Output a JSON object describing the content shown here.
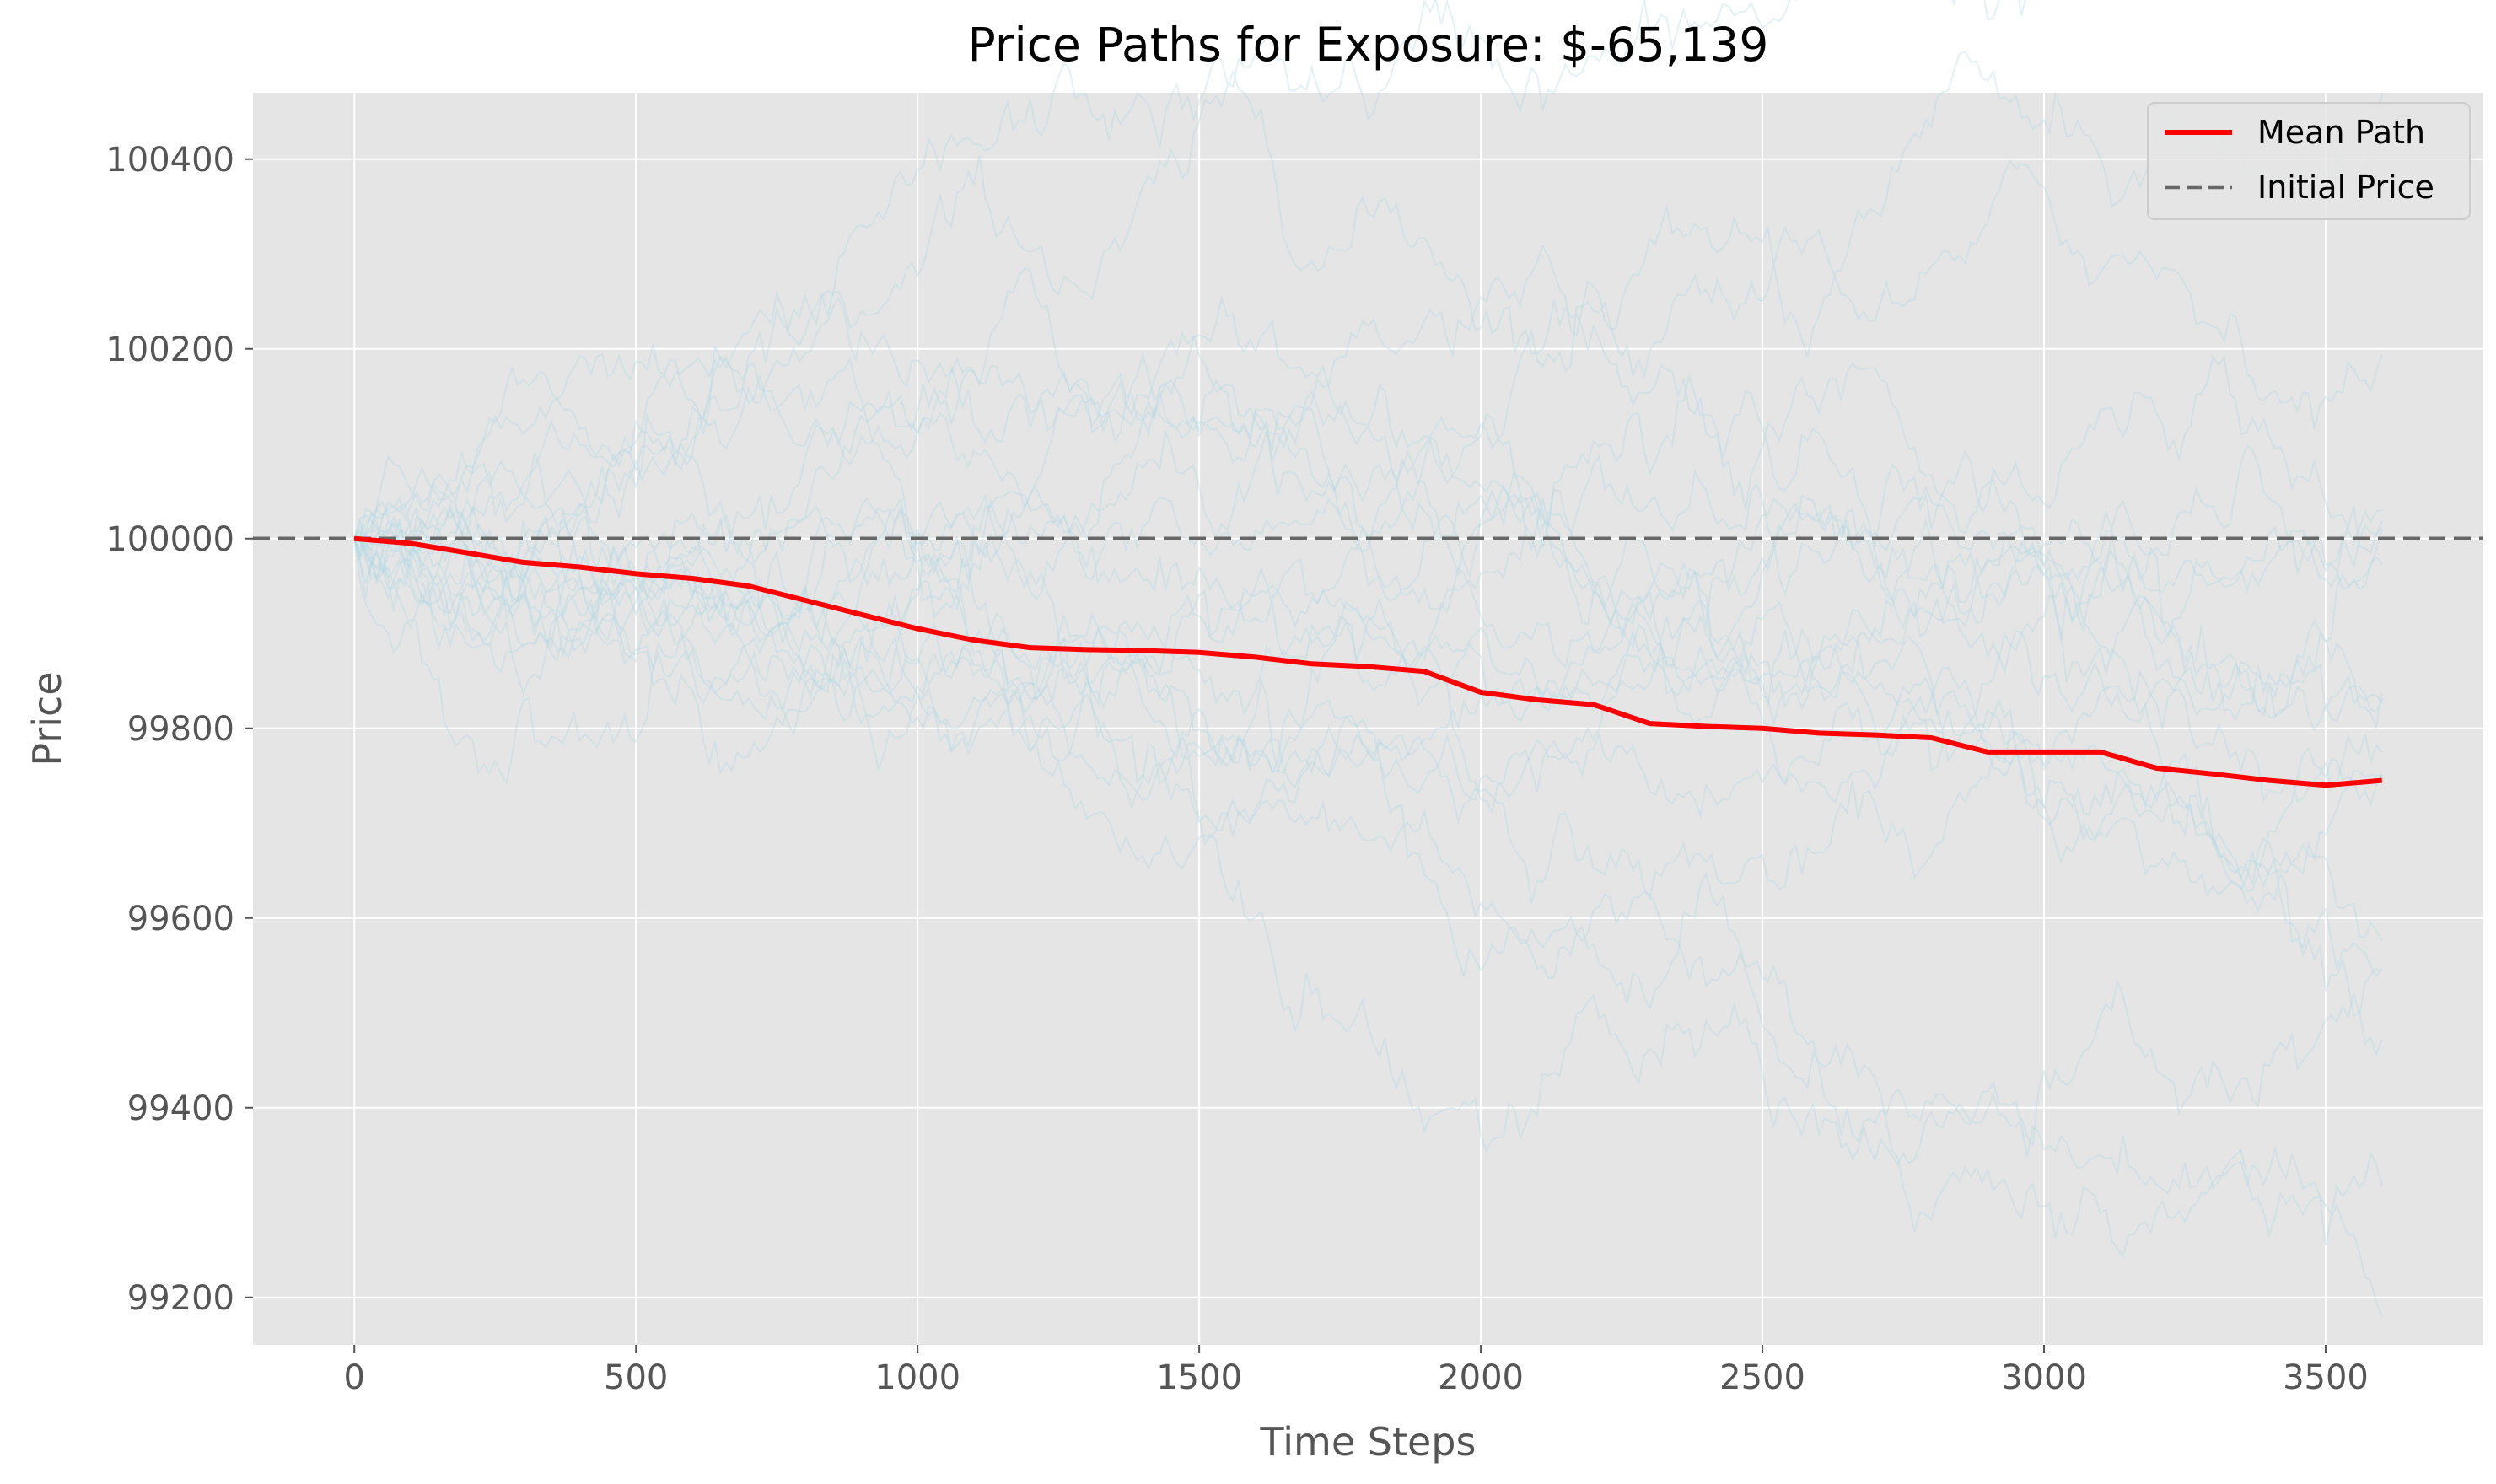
{
  "chart_data": {
    "type": "line",
    "title": "Price Paths for Exposure: $-65,139",
    "xlabel": "Time Steps",
    "ylabel": "Price",
    "xlim": [
      -180,
      3780
    ],
    "ylim": [
      99150,
      100470
    ],
    "xticks": [
      0,
      500,
      1000,
      1500,
      2000,
      2500,
      3000,
      3500
    ],
    "yticks": [
      99200,
      99400,
      99600,
      99800,
      100000,
      100200,
      100400
    ],
    "grid": true,
    "legend_position": "top-right",
    "legend": [
      "Mean Path",
      "Initial Price"
    ],
    "colors": {
      "background": "#e5e5e5",
      "grid": "#ffffff",
      "mean_path": "#ff0000",
      "initial_price": "#666666",
      "sim_paths": "#add8e6"
    },
    "initial_price": 100000,
    "series": [
      {
        "name": "Mean Path",
        "x": [
          0,
          100,
          200,
          300,
          400,
          500,
          600,
          700,
          800,
          900,
          1000,
          1100,
          1200,
          1300,
          1400,
          1500,
          1600,
          1700,
          1800,
          1900,
          2000,
          2100,
          2200,
          2300,
          2400,
          2500,
          2600,
          2700,
          2800,
          2900,
          3000,
          3100,
          3200,
          3300,
          3400,
          3500,
          3600
        ],
        "y": [
          100000,
          99995,
          99985,
          99975,
          99970,
          99963,
          99958,
          99950,
          99935,
          99920,
          99905,
          99893,
          99885,
          99883,
          99882,
          99880,
          99875,
          99868,
          99865,
          99860,
          99838,
          99830,
          99825,
          99805,
          99802,
          99800,
          99795,
          99793,
          99790,
          99775,
          99775,
          99775,
          99758,
          99752,
          99745,
          99740,
          99745
        ]
      }
    ],
    "simulated_paths": {
      "count": 20,
      "start_value": 100000,
      "steps": 3600,
      "x_range": [
        0,
        3600
      ],
      "final_value_range": [
        99230,
        100120
      ]
    }
  }
}
